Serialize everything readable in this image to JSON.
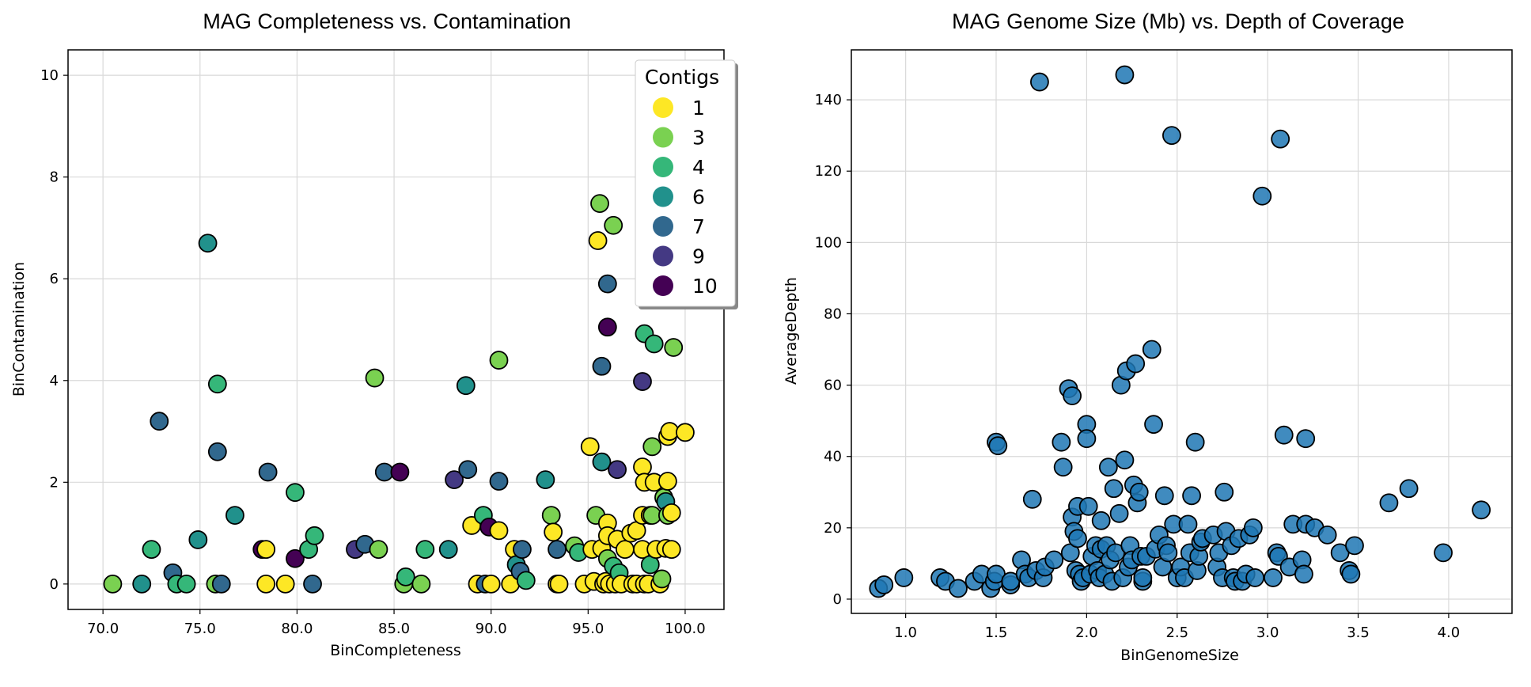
{
  "chart_data": [
    {
      "type": "scatter",
      "title": "MAG Completeness vs. Contamination",
      "xlabel": "BinCompleteness",
      "ylabel": "BinContamination",
      "xlim": [
        68.2,
        102.0
      ],
      "ylim": [
        -0.5,
        10.5
      ],
      "xticks": [
        70,
        75,
        80,
        85,
        90,
        95,
        100
      ],
      "xtick_labels": [
        "70.0",
        "75.0",
        "80.0",
        "85.0",
        "90.0",
        "95.0",
        "100.0"
      ],
      "yticks": [
        0,
        2,
        4,
        6,
        8,
        10
      ],
      "ytick_labels": [
        "0",
        "2",
        "4",
        "6",
        "8",
        "10"
      ],
      "grid": true,
      "legend": {
        "title": "Contigs",
        "placement": "top-right",
        "entries": [
          {
            "label": "1",
            "color": "#fde725"
          },
          {
            "label": "3",
            "color": "#7ad151"
          },
          {
            "label": "4",
            "color": "#35b779"
          },
          {
            "label": "6",
            "color": "#21918c"
          },
          {
            "label": "7",
            "color": "#31688e"
          },
          {
            "label": "9",
            "color": "#443983"
          },
          {
            "label": "10",
            "color": "#440154"
          }
        ]
      },
      "colormap": "viridis",
      "points": [
        {
          "x": 70.5,
          "y": 0.0,
          "c": 3
        },
        {
          "x": 72.0,
          "y": 0.0,
          "c": 6
        },
        {
          "x": 72.5,
          "y": 0.68,
          "c": 4
        },
        {
          "x": 72.9,
          "y": 3.2,
          "c": 7
        },
        {
          "x": 73.6,
          "y": 0.22,
          "c": 7
        },
        {
          "x": 73.8,
          "y": 0.0,
          "c": 4
        },
        {
          "x": 74.3,
          "y": 0.0,
          "c": 4
        },
        {
          "x": 74.9,
          "y": 0.87,
          "c": 6
        },
        {
          "x": 75.4,
          "y": 6.7,
          "c": 6
        },
        {
          "x": 75.8,
          "y": 0.0,
          "c": 3
        },
        {
          "x": 75.9,
          "y": 3.93,
          "c": 4
        },
        {
          "x": 75.9,
          "y": 2.6,
          "c": 7
        },
        {
          "x": 76.1,
          "y": 0.0,
          "c": 7
        },
        {
          "x": 76.8,
          "y": 1.35,
          "c": 6
        },
        {
          "x": 78.2,
          "y": 0.68,
          "c": 10
        },
        {
          "x": 78.4,
          "y": 0.68,
          "c": 1
        },
        {
          "x": 78.5,
          "y": 2.2,
          "c": 7
        },
        {
          "x": 78.4,
          "y": 0.0,
          "c": 1
        },
        {
          "x": 79.4,
          "y": 0.0,
          "c": 1
        },
        {
          "x": 79.9,
          "y": 0.5,
          "c": 10
        },
        {
          "x": 79.9,
          "y": 1.8,
          "c": 4
        },
        {
          "x": 80.6,
          "y": 0.68,
          "c": 4
        },
        {
          "x": 80.9,
          "y": 0.95,
          "c": 4
        },
        {
          "x": 80.8,
          "y": 0.0,
          "c": 7
        },
        {
          "x": 83.0,
          "y": 0.68,
          "c": 9
        },
        {
          "x": 83.5,
          "y": 0.78,
          "c": 7
        },
        {
          "x": 84.0,
          "y": 4.05,
          "c": 3
        },
        {
          "x": 84.2,
          "y": 0.68,
          "c": 3
        },
        {
          "x": 84.5,
          "y": 2.2,
          "c": 7
        },
        {
          "x": 85.3,
          "y": 2.2,
          "c": 10
        },
        {
          "x": 85.5,
          "y": 0.0,
          "c": 3
        },
        {
          "x": 85.6,
          "y": 0.14,
          "c": 4
        },
        {
          "x": 86.4,
          "y": 0.0,
          "c": 3
        },
        {
          "x": 86.6,
          "y": 0.68,
          "c": 4
        },
        {
          "x": 87.8,
          "y": 0.68,
          "c": 6
        },
        {
          "x": 88.1,
          "y": 2.05,
          "c": 9
        },
        {
          "x": 88.7,
          "y": 3.9,
          "c": 6
        },
        {
          "x": 88.8,
          "y": 2.25,
          "c": 7
        },
        {
          "x": 89.0,
          "y": 1.15,
          "c": 1
        },
        {
          "x": 89.3,
          "y": 0.0,
          "c": 1
        },
        {
          "x": 89.6,
          "y": 1.35,
          "c": 4
        },
        {
          "x": 89.7,
          "y": 0.0,
          "c": 7
        },
        {
          "x": 89.9,
          "y": 1.12,
          "c": 10
        },
        {
          "x": 90.0,
          "y": 0.0,
          "c": 1
        },
        {
          "x": 90.4,
          "y": 1.05,
          "c": 1
        },
        {
          "x": 90.4,
          "y": 4.4,
          "c": 3
        },
        {
          "x": 90.4,
          "y": 2.02,
          "c": 7
        },
        {
          "x": 91.0,
          "y": 0.0,
          "c": 1
        },
        {
          "x": 91.2,
          "y": 0.68,
          "c": 1
        },
        {
          "x": 91.3,
          "y": 0.38,
          "c": 6
        },
        {
          "x": 91.5,
          "y": 0.25,
          "c": 7
        },
        {
          "x": 91.6,
          "y": 0.68,
          "c": 7
        },
        {
          "x": 91.8,
          "y": 0.07,
          "c": 4
        },
        {
          "x": 92.8,
          "y": 2.05,
          "c": 6
        },
        {
          "x": 93.1,
          "y": 1.35,
          "c": 3
        },
        {
          "x": 93.2,
          "y": 1.02,
          "c": 1
        },
        {
          "x": 93.4,
          "y": 0.68,
          "c": 7
        },
        {
          "x": 93.4,
          "y": 0.0,
          "c": 1
        },
        {
          "x": 93.5,
          "y": 0.0,
          "c": 1
        },
        {
          "x": 94.3,
          "y": 0.75,
          "c": 3
        },
        {
          "x": 94.5,
          "y": 0.62,
          "c": 4
        },
        {
          "x": 94.8,
          "y": 0.0,
          "c": 1
        },
        {
          "x": 95.1,
          "y": 2.7,
          "c": 1
        },
        {
          "x": 95.2,
          "y": 0.68,
          "c": 1
        },
        {
          "x": 95.3,
          "y": 0.05,
          "c": 1
        },
        {
          "x": 95.4,
          "y": 1.35,
          "c": 3
        },
        {
          "x": 95.5,
          "y": 6.75,
          "c": 1
        },
        {
          "x": 95.6,
          "y": 7.48,
          "c": 3
        },
        {
          "x": 95.7,
          "y": 2.4,
          "c": 6
        },
        {
          "x": 95.7,
          "y": 4.28,
          "c": 7
        },
        {
          "x": 95.7,
          "y": 0.7,
          "c": 1
        },
        {
          "x": 95.8,
          "y": 0.0,
          "c": 1
        },
        {
          "x": 95.9,
          "y": 0.05,
          "c": 1
        },
        {
          "x": 96.0,
          "y": 1.2,
          "c": 1
        },
        {
          "x": 96.0,
          "y": 0.5,
          "c": 3
        },
        {
          "x": 96.0,
          "y": 0.95,
          "c": 1
        },
        {
          "x": 96.0,
          "y": 5.9,
          "c": 7
        },
        {
          "x": 96.0,
          "y": 5.05,
          "c": 10
        },
        {
          "x": 96.1,
          "y": 0.0,
          "c": 1
        },
        {
          "x": 96.3,
          "y": 7.05,
          "c": 3
        },
        {
          "x": 96.3,
          "y": 0.35,
          "c": 4
        },
        {
          "x": 96.4,
          "y": 0.0,
          "c": 1
        },
        {
          "x": 96.5,
          "y": 2.25,
          "c": 9
        },
        {
          "x": 96.5,
          "y": 0.88,
          "c": 1
        },
        {
          "x": 96.6,
          "y": 0.22,
          "c": 4
        },
        {
          "x": 96.7,
          "y": 0.0,
          "c": 1
        },
        {
          "x": 96.9,
          "y": 0.68,
          "c": 1
        },
        {
          "x": 97.2,
          "y": 1.0,
          "c": 1
        },
        {
          "x": 97.3,
          "y": 0.0,
          "c": 1
        },
        {
          "x": 97.5,
          "y": 1.05,
          "c": 1
        },
        {
          "x": 97.5,
          "y": 0.0,
          "c": 1
        },
        {
          "x": 97.8,
          "y": 2.3,
          "c": 1
        },
        {
          "x": 97.8,
          "y": 1.35,
          "c": 1
        },
        {
          "x": 97.8,
          "y": 0.68,
          "c": 1
        },
        {
          "x": 97.8,
          "y": 3.98,
          "c": 9
        },
        {
          "x": 97.9,
          "y": 4.92,
          "c": 4
        },
        {
          "x": 97.9,
          "y": 2.0,
          "c": 1
        },
        {
          "x": 97.9,
          "y": 0.0,
          "c": 1
        },
        {
          "x": 98.1,
          "y": 0.0,
          "c": 1
        },
        {
          "x": 98.2,
          "y": 0.38,
          "c": 4
        },
        {
          "x": 98.2,
          "y": 1.35,
          "c": 1
        },
        {
          "x": 98.3,
          "y": 2.7,
          "c": 3
        },
        {
          "x": 98.3,
          "y": 1.35,
          "c": 3
        },
        {
          "x": 98.4,
          "y": 4.72,
          "c": 4
        },
        {
          "x": 98.4,
          "y": 2.0,
          "c": 1
        },
        {
          "x": 98.5,
          "y": 0.68,
          "c": 1
        },
        {
          "x": 98.7,
          "y": 0.0,
          "c": 1
        },
        {
          "x": 98.8,
          "y": 0.1,
          "c": 3
        },
        {
          "x": 98.9,
          "y": 1.7,
          "c": 3
        },
        {
          "x": 99.0,
          "y": 0.7,
          "c": 1
        },
        {
          "x": 99.0,
          "y": 1.62,
          "c": 6
        },
        {
          "x": 99.1,
          "y": 2.9,
          "c": 1
        },
        {
          "x": 99.1,
          "y": 2.02,
          "c": 1
        },
        {
          "x": 99.1,
          "y": 1.35,
          "c": 3
        },
        {
          "x": 99.2,
          "y": 3.0,
          "c": 1
        },
        {
          "x": 99.3,
          "y": 1.4,
          "c": 1
        },
        {
          "x": 99.3,
          "y": 0.68,
          "c": 1
        },
        {
          "x": 99.4,
          "y": 4.65,
          "c": 3
        },
        {
          "x": 100.0,
          "y": 2.98,
          "c": 1
        }
      ]
    },
    {
      "type": "scatter",
      "title": "MAG Genome Size (Mb) vs. Depth of Coverage",
      "xlabel": "BinGenomeSize",
      "ylabel": "AverageDepth",
      "xlim": [
        0.7,
        4.35
      ],
      "ylim": [
        -4,
        154
      ],
      "xticks": [
        1.0,
        1.5,
        2.0,
        2.5,
        3.0,
        3.5,
        4.0
      ],
      "xtick_labels": [
        "1.0",
        "1.5",
        "2.0",
        "2.5",
        "3.0",
        "3.5",
        "4.0"
      ],
      "yticks": [
        0,
        20,
        40,
        60,
        80,
        100,
        120,
        140
      ],
      "ytick_labels": [
        "0",
        "20",
        "40",
        "60",
        "80",
        "100",
        "120",
        "140"
      ],
      "grid": true,
      "marker_color": "#1f77b4",
      "points": [
        {
          "x": 0.85,
          "y": 3
        },
        {
          "x": 0.88,
          "y": 4
        },
        {
          "x": 0.99,
          "y": 6
        },
        {
          "x": 1.19,
          "y": 6
        },
        {
          "x": 1.22,
          "y": 5
        },
        {
          "x": 1.29,
          "y": 3
        },
        {
          "x": 1.38,
          "y": 5
        },
        {
          "x": 1.42,
          "y": 7
        },
        {
          "x": 1.47,
          "y": 3
        },
        {
          "x": 1.49,
          "y": 5
        },
        {
          "x": 1.5,
          "y": 7
        },
        {
          "x": 1.5,
          "y": 44
        },
        {
          "x": 1.51,
          "y": 43
        },
        {
          "x": 1.58,
          "y": 4
        },
        {
          "x": 1.58,
          "y": 5
        },
        {
          "x": 1.64,
          "y": 11
        },
        {
          "x": 1.66,
          "y": 7
        },
        {
          "x": 1.68,
          "y": 6
        },
        {
          "x": 1.7,
          "y": 28
        },
        {
          "x": 1.72,
          "y": 8
        },
        {
          "x": 1.74,
          "y": 145
        },
        {
          "x": 1.76,
          "y": 6
        },
        {
          "x": 1.77,
          "y": 9
        },
        {
          "x": 1.82,
          "y": 11
        },
        {
          "x": 1.86,
          "y": 44
        },
        {
          "x": 1.87,
          "y": 37
        },
        {
          "x": 1.9,
          "y": 59
        },
        {
          "x": 1.91,
          "y": 13
        },
        {
          "x": 1.92,
          "y": 23
        },
        {
          "x": 1.92,
          "y": 57
        },
        {
          "x": 1.93,
          "y": 19
        },
        {
          "x": 1.94,
          "y": 8
        },
        {
          "x": 1.95,
          "y": 26
        },
        {
          "x": 1.95,
          "y": 17
        },
        {
          "x": 1.96,
          "y": 7
        },
        {
          "x": 1.97,
          "y": 5
        },
        {
          "x": 1.98,
          "y": 6
        },
        {
          "x": 2.0,
          "y": 49
        },
        {
          "x": 2.0,
          "y": 45
        },
        {
          "x": 2.01,
          "y": 26
        },
        {
          "x": 2.02,
          "y": 7
        },
        {
          "x": 2.03,
          "y": 12
        },
        {
          "x": 2.05,
          "y": 15
        },
        {
          "x": 2.06,
          "y": 8
        },
        {
          "x": 2.07,
          "y": 6
        },
        {
          "x": 2.08,
          "y": 22
        },
        {
          "x": 2.08,
          "y": 14
        },
        {
          "x": 2.1,
          "y": 7
        },
        {
          "x": 2.11,
          "y": 15
        },
        {
          "x": 2.12,
          "y": 37
        },
        {
          "x": 2.13,
          "y": 11
        },
        {
          "x": 2.14,
          "y": 5
        },
        {
          "x": 2.15,
          "y": 31
        },
        {
          "x": 2.16,
          "y": 13
        },
        {
          "x": 2.18,
          "y": 24
        },
        {
          "x": 2.19,
          "y": 60
        },
        {
          "x": 2.2,
          "y": 6
        },
        {
          "x": 2.21,
          "y": 147
        },
        {
          "x": 2.21,
          "y": 39
        },
        {
          "x": 2.22,
          "y": 64
        },
        {
          "x": 2.23,
          "y": 9
        },
        {
          "x": 2.24,
          "y": 15
        },
        {
          "x": 2.25,
          "y": 11
        },
        {
          "x": 2.26,
          "y": 32
        },
        {
          "x": 2.27,
          "y": 66
        },
        {
          "x": 2.28,
          "y": 27
        },
        {
          "x": 2.29,
          "y": 30
        },
        {
          "x": 2.3,
          "y": 12
        },
        {
          "x": 2.31,
          "y": 5
        },
        {
          "x": 2.31,
          "y": 6
        },
        {
          "x": 2.33,
          "y": 12
        },
        {
          "x": 2.36,
          "y": 70
        },
        {
          "x": 2.37,
          "y": 49
        },
        {
          "x": 2.38,
          "y": 14
        },
        {
          "x": 2.4,
          "y": 18
        },
        {
          "x": 2.42,
          "y": 9
        },
        {
          "x": 2.43,
          "y": 29
        },
        {
          "x": 2.44,
          "y": 15
        },
        {
          "x": 2.45,
          "y": 13
        },
        {
          "x": 2.47,
          "y": 130
        },
        {
          "x": 2.48,
          "y": 21
        },
        {
          "x": 2.5,
          "y": 6
        },
        {
          "x": 2.52,
          "y": 9
        },
        {
          "x": 2.54,
          "y": 6
        },
        {
          "x": 2.56,
          "y": 21
        },
        {
          "x": 2.57,
          "y": 13
        },
        {
          "x": 2.58,
          "y": 29
        },
        {
          "x": 2.6,
          "y": 44
        },
        {
          "x": 2.61,
          "y": 8
        },
        {
          "x": 2.62,
          "y": 12
        },
        {
          "x": 2.63,
          "y": 16
        },
        {
          "x": 2.64,
          "y": 17
        },
        {
          "x": 2.7,
          "y": 18
        },
        {
          "x": 2.72,
          "y": 9
        },
        {
          "x": 2.73,
          "y": 13
        },
        {
          "x": 2.75,
          "y": 6
        },
        {
          "x": 2.76,
          "y": 30
        },
        {
          "x": 2.77,
          "y": 19
        },
        {
          "x": 2.8,
          "y": 15
        },
        {
          "x": 2.81,
          "y": 6
        },
        {
          "x": 2.82,
          "y": 5
        },
        {
          "x": 2.84,
          "y": 17
        },
        {
          "x": 2.86,
          "y": 5
        },
        {
          "x": 2.88,
          "y": 7
        },
        {
          "x": 2.9,
          "y": 18
        },
        {
          "x": 2.92,
          "y": 20
        },
        {
          "x": 2.93,
          "y": 6
        },
        {
          "x": 2.97,
          "y": 113
        },
        {
          "x": 3.03,
          "y": 6
        },
        {
          "x": 3.05,
          "y": 13
        },
        {
          "x": 3.06,
          "y": 12
        },
        {
          "x": 3.07,
          "y": 129
        },
        {
          "x": 3.09,
          "y": 46
        },
        {
          "x": 3.12,
          "y": 9
        },
        {
          "x": 3.14,
          "y": 21
        },
        {
          "x": 3.19,
          "y": 11
        },
        {
          "x": 3.2,
          "y": 7
        },
        {
          "x": 3.21,
          "y": 45
        },
        {
          "x": 3.21,
          "y": 21
        },
        {
          "x": 3.26,
          "y": 20
        },
        {
          "x": 3.33,
          "y": 18
        },
        {
          "x": 3.4,
          "y": 13
        },
        {
          "x": 3.45,
          "y": 8
        },
        {
          "x": 3.46,
          "y": 7
        },
        {
          "x": 3.48,
          "y": 15
        },
        {
          "x": 3.67,
          "y": 27
        },
        {
          "x": 3.78,
          "y": 31
        },
        {
          "x": 3.97,
          "y": 13
        },
        {
          "x": 4.18,
          "y": 25
        }
      ]
    }
  ]
}
